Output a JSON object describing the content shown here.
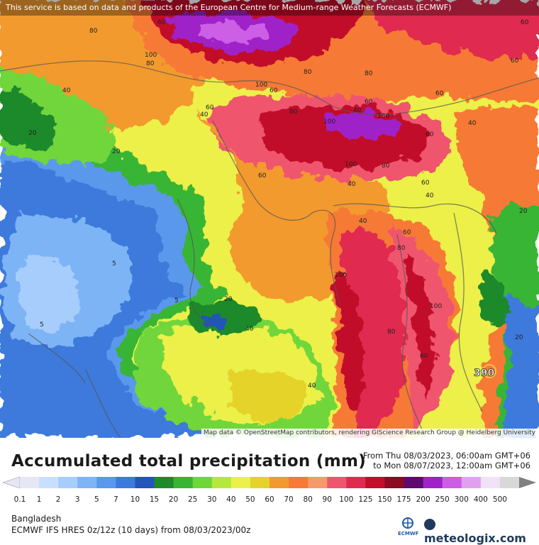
{
  "header": {
    "credit_top": "This service is based on data and products of the European Centre for Medium-range Weather Forecasts (ECMWF)",
    "credit_bottom": "Map data © OpenStreetMap contributors, rendering GIScience Research Group @ Heidelberg University"
  },
  "map": {
    "labels": [
      "80",
      "60",
      "100",
      "80",
      "40",
      "20",
      "20",
      "40",
      "60",
      "100",
      "60",
      "80",
      "40",
      "60",
      "80",
      "100",
      "180",
      "60",
      "40",
      "60",
      "100",
      "80",
      "60",
      "40",
      "60",
      "80",
      "40",
      "60",
      "80",
      "100",
      "100",
      "80",
      "60",
      "40",
      "20",
      "20",
      "5",
      "5",
      "5",
      "40",
      "40",
      "20",
      "60",
      "60",
      "390",
      "20",
      "40"
    ],
    "max_marker": "390"
  },
  "title": "Accumulated total precipitation (mm)",
  "period": {
    "from": "From Thu 08/03/2023, 06:00am GMT+06",
    "to": "to Mon 08/07/2023, 12:00am GMT+06"
  },
  "legend": {
    "values": [
      "0.1",
      "1",
      "2",
      "3",
      "5",
      "7",
      "10",
      "15",
      "20",
      "25",
      "30",
      "40",
      "50",
      "60",
      "70",
      "80",
      "90",
      "100",
      "125",
      "150",
      "175",
      "200",
      "250",
      "300",
      "400",
      "500"
    ],
    "colors": [
      "#e6e6f5",
      "#c8e0ff",
      "#a6cdfc",
      "#7db4f5",
      "#5a98ec",
      "#3c7adc",
      "#2455b8",
      "#1f8a2a",
      "#38b535",
      "#6fd63a",
      "#b6e83c",
      "#ecf04a",
      "#e5d32b",
      "#f39a2e",
      "#f67a36",
      "#f59a6a",
      "#f0556e",
      "#e02a50",
      "#c20d2b",
      "#8c0a22",
      "#5e0a70",
      "#9f22c8",
      "#cc5ee6",
      "#e0a2ef",
      "#f1e2f7",
      "#d8d8d8"
    ]
  },
  "footer": {
    "region": "Bangladesh",
    "model": "ECMWF IFS HRES 0z/12z (10 days) from 08/03/2023/00z",
    "ecmwf": "ECMWF",
    "brand": "meteologix.com"
  }
}
